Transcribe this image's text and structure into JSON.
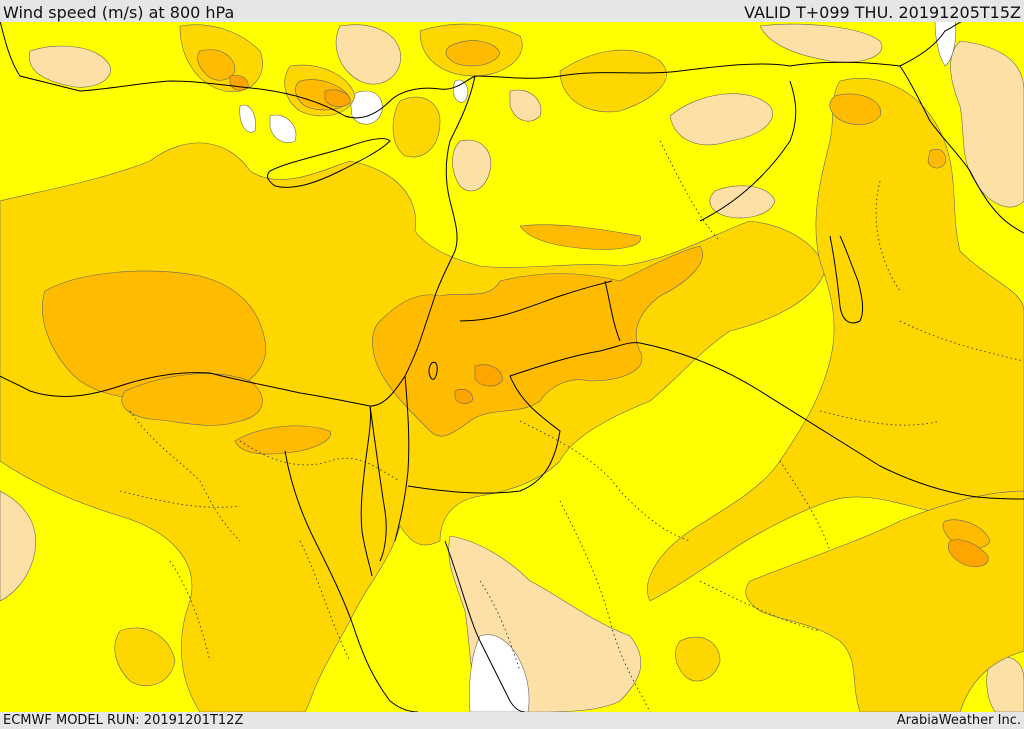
{
  "header": {
    "title": "Wind speed (m/s) at 800 hPa",
    "valid": "VALID T+099 THU. 20191205T15Z"
  },
  "footer": {
    "model_run": "ECMWF MODEL RUN: 20191201T12Z",
    "credit": "ArabiaWeather Inc."
  },
  "map": {
    "field": "wind-speed",
    "palette": {
      "calm": "#ffffff",
      "light": "#fde0a6",
      "base": "#ffff00",
      "moderate": "#ffd700",
      "strong": "#ffbb00",
      "very_strong": "#ffa500"
    },
    "land_borders": "country-and-coast-outlines",
    "province_borders": "dotted"
  }
}
